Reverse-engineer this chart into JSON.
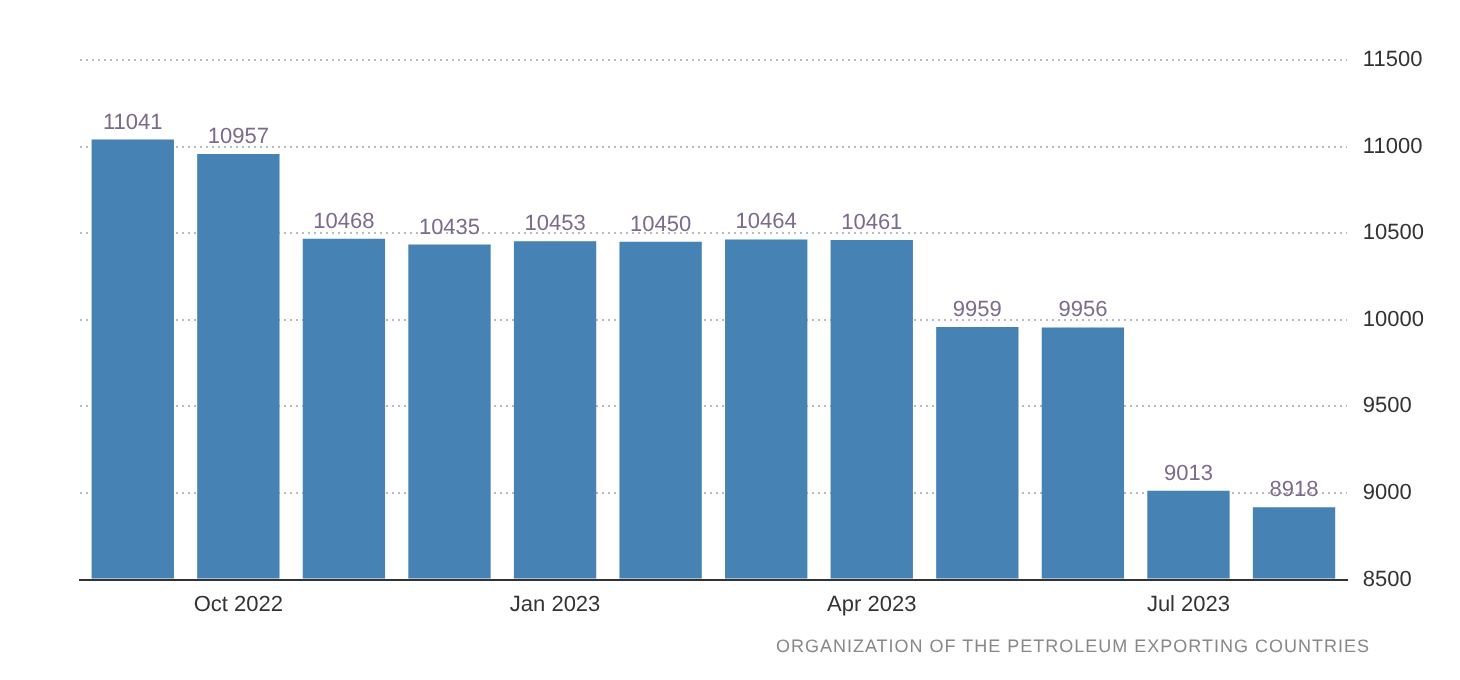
{
  "chart_data": {
    "type": "bar",
    "categories": [
      null,
      "Oct 2022",
      null,
      null,
      "Jan 2023",
      null,
      null,
      "Apr 2023",
      null,
      null,
      "Jul 2023",
      null
    ],
    "values": [
      11041,
      10957,
      10468,
      10435,
      10453,
      10450,
      10464,
      10461,
      9959,
      9956,
      9013,
      8918
    ],
    "color": "#4682b4",
    "ylim": [
      8500,
      11500
    ],
    "yticks": [
      8500,
      9000,
      9500,
      10000,
      10500,
      11000,
      11500
    ],
    "grid": "y",
    "data_labels": true,
    "legend": false,
    "annotations": [
      "ORGANIZATION OF THE PETROLEUM EXPORTING COUNTRIES"
    ]
  }
}
